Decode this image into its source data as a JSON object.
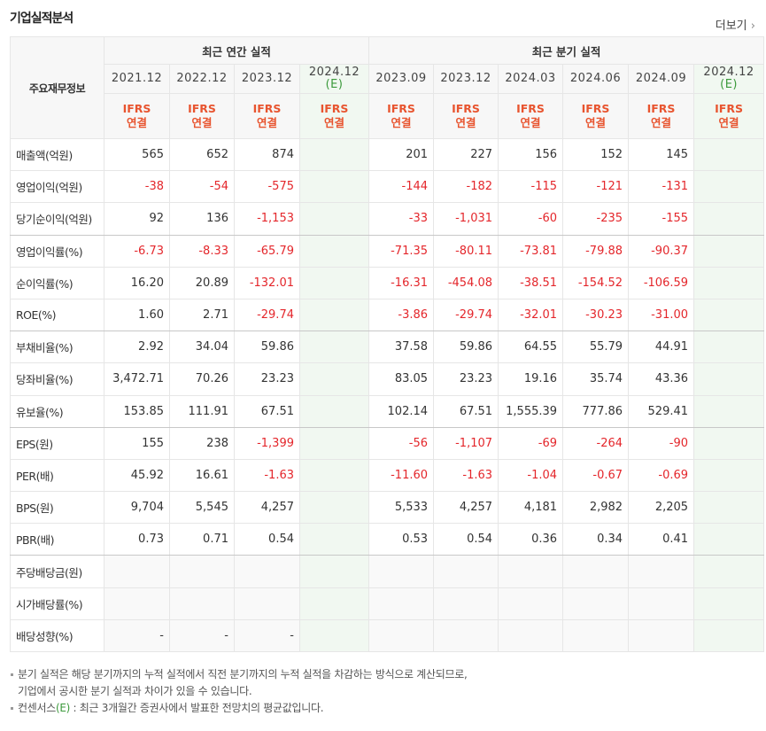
{
  "header": {
    "title": "기업실적분석",
    "more": "더보기"
  },
  "table": {
    "row_header": "주요재무정보",
    "groups": [
      {
        "label": "최근 연간 실적",
        "span": 4
      },
      {
        "label": "최근 분기 실적",
        "span": 6
      }
    ],
    "columns": [
      {
        "period": "2021.12",
        "basis": [
          "IFRS",
          "연결"
        ]
      },
      {
        "period": "2022.12",
        "basis": [
          "IFRS",
          "연결"
        ]
      },
      {
        "period": "2023.12",
        "basis": [
          "IFRS",
          "연결"
        ]
      },
      {
        "period": "2024.12",
        "estimate": "(E)",
        "basis": [
          "IFRS",
          "연결"
        ]
      },
      {
        "period": "2023.09",
        "basis": [
          "IFRS",
          "연결"
        ]
      },
      {
        "period": "2023.12",
        "basis": [
          "IFRS",
          "연결"
        ]
      },
      {
        "period": "2024.03",
        "basis": [
          "IFRS",
          "연결"
        ]
      },
      {
        "period": "2024.06",
        "basis": [
          "IFRS",
          "연결"
        ]
      },
      {
        "period": "2024.09",
        "basis": [
          "IFRS",
          "연결"
        ]
      },
      {
        "period": "2024.12",
        "estimate": "(E)",
        "basis": [
          "IFRS",
          "연결"
        ]
      }
    ],
    "rows": [
      {
        "label": "매출액(억원)",
        "values": [
          "565",
          "652",
          "874",
          null,
          "201",
          "227",
          "156",
          "152",
          "145",
          null
        ]
      },
      {
        "label": "영업이익(억원)",
        "values": [
          "-38",
          "-54",
          "-575",
          null,
          "-144",
          "-182",
          "-115",
          "-121",
          "-131",
          null
        ]
      },
      {
        "label": "당기순이익(억원)",
        "values": [
          "92",
          "136",
          "-1,153",
          null,
          "-33",
          "-1,031",
          "-60",
          "-235",
          "-155",
          null
        ]
      },
      {
        "label": "영업이익률(%)",
        "values": [
          "-6.73",
          "-8.33",
          "-65.79",
          null,
          "-71.35",
          "-80.11",
          "-73.81",
          "-79.88",
          "-90.37",
          null
        ]
      },
      {
        "label": "순이익률(%)",
        "values": [
          "16.20",
          "20.89",
          "-132.01",
          null,
          "-16.31",
          "-454.08",
          "-38.51",
          "-154.52",
          "-106.59",
          null
        ]
      },
      {
        "label": "ROE(%)",
        "values": [
          "1.60",
          "2.71",
          "-29.74",
          null,
          "-3.86",
          "-29.74",
          "-32.01",
          "-30.23",
          "-31.00",
          null
        ]
      },
      {
        "label": "부채비율(%)",
        "values": [
          "2.92",
          "34.04",
          "59.86",
          null,
          "37.58",
          "59.86",
          "64.55",
          "55.79",
          "44.91",
          null
        ]
      },
      {
        "label": "당좌비율(%)",
        "values": [
          "3,472.71",
          "70.26",
          "23.23",
          null,
          "83.05",
          "23.23",
          "19.16",
          "35.74",
          "43.36",
          null
        ]
      },
      {
        "label": "유보율(%)",
        "values": [
          "153.85",
          "111.91",
          "67.51",
          null,
          "102.14",
          "67.51",
          "1,555.39",
          "777.86",
          "529.41",
          null
        ]
      },
      {
        "label": "EPS(원)",
        "values": [
          "155",
          "238",
          "-1,399",
          null,
          "-56",
          "-1,107",
          "-69",
          "-264",
          "-90",
          null
        ]
      },
      {
        "label": "PER(배)",
        "values": [
          "45.92",
          "16.61",
          "-1.63",
          null,
          "-11.60",
          "-1.63",
          "-1.04",
          "-0.67",
          "-0.69",
          null
        ]
      },
      {
        "label": "BPS(원)",
        "values": [
          "9,704",
          "5,545",
          "4,257",
          null,
          "5,533",
          "4,257",
          "4,181",
          "2,982",
          "2,205",
          null
        ]
      },
      {
        "label": "PBR(배)",
        "values": [
          "0.73",
          "0.71",
          "0.54",
          null,
          "0.53",
          "0.54",
          "0.36",
          "0.34",
          "0.41",
          null
        ]
      },
      {
        "label": "주당배당금(원)",
        "values": [
          null,
          null,
          null,
          null,
          null,
          null,
          null,
          null,
          null,
          null
        ]
      },
      {
        "label": "시가배당률(%)",
        "values": [
          null,
          null,
          null,
          null,
          null,
          null,
          null,
          null,
          null,
          null
        ]
      },
      {
        "label": "배당성향(%)",
        "values": [
          "-",
          "-",
          "-",
          null,
          null,
          null,
          null,
          null,
          null,
          null
        ]
      }
    ]
  },
  "footnotes": [
    {
      "lines": [
        "분기 실적은 해당 분기까지의 누적 실적에서 직전 분기까지의 누적 실적을 차감하는 방식으로 계산되므로,",
        "기업에서 공시한 분기 실적과 차이가 있을 수 있습니다."
      ]
    },
    {
      "lines": [
        "컨센서스"
      ],
      "mark": "(E)",
      "rest": " : 최근 3개월간 증권사에서 발표한 전망치의 평균값입니다."
    }
  ]
}
